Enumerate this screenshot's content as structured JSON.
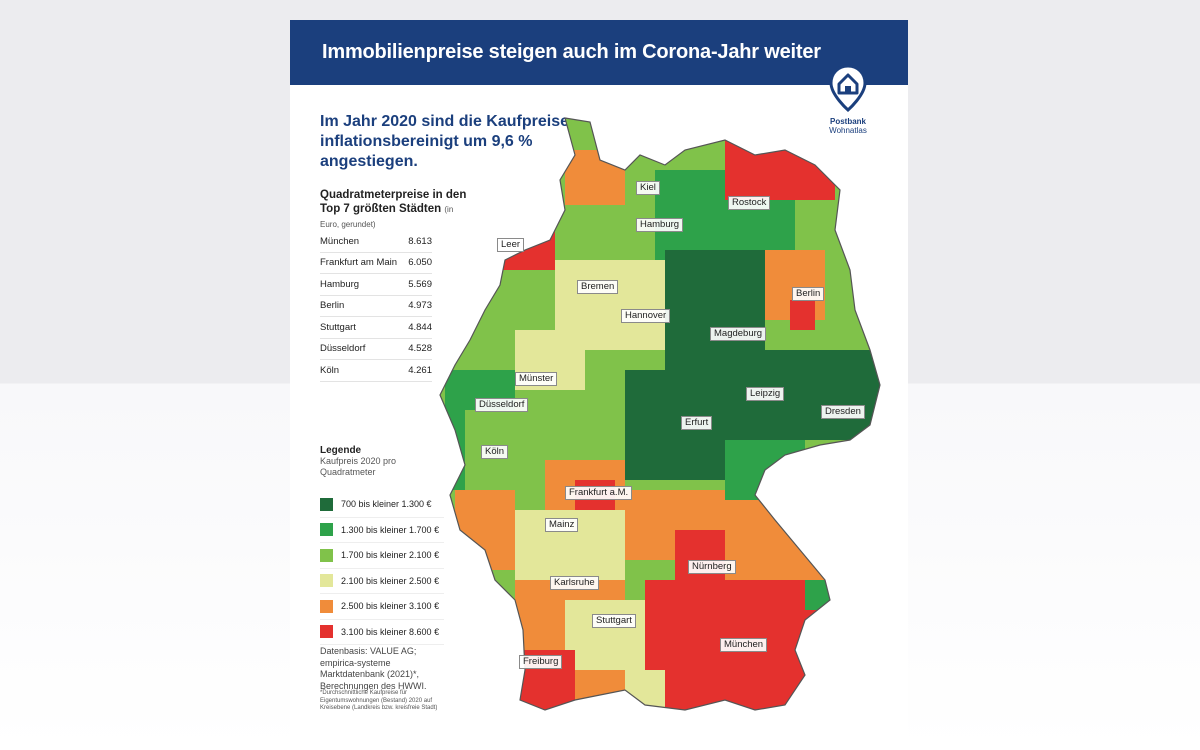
{
  "banner": {
    "title": "Immobilienpreise steigen auch im Corona-Jahr weiter"
  },
  "logo": {
    "name": "Postbank",
    "sub": "Wohnatlas",
    "icon": "house-pin-icon",
    "color": "#1b3f7d"
  },
  "headline": "Im Jahr 2020 sind die Kaufpreise inflationsbereinigt um 9,6 % angestiegen.",
  "ranking": {
    "title": "Quadratmeterpreise in den Top 7 größten Städten",
    "unit": "(in Euro, gerundet)",
    "rows": [
      {
        "city": "München",
        "value": "8.613"
      },
      {
        "city": "Frankfurt am Main",
        "value": "6.050"
      },
      {
        "city": "Hamburg",
        "value": "5.569"
      },
      {
        "city": "Berlin",
        "value": "4.973"
      },
      {
        "city": "Stuttgart",
        "value": "4.844"
      },
      {
        "city": "Düsseldorf",
        "value": "4.528"
      },
      {
        "city": "Köln",
        "value": "4.261"
      }
    ]
  },
  "legend": {
    "title": "Legende",
    "subtitle": "Kaufpreis 2020 pro Quadratmeter",
    "items": [
      {
        "label": "700 bis kleiner 1.300 €",
        "color": "#1f6b3a"
      },
      {
        "label": "1.300 bis kleiner 1.700 €",
        "color": "#2ea24a"
      },
      {
        "label": "1.700 bis kleiner 2.100 €",
        "color": "#80c24a"
      },
      {
        "label": "2.100 bis kleiner 2.500 €",
        "color": "#e3e79a"
      },
      {
        "label": "2.500 bis kleiner 3.100 €",
        "color": "#f08c3a"
      },
      {
        "label": "3.100 bis kleiner 8.600 €",
        "color": "#e4312e"
      }
    ]
  },
  "source": "Datenbasis: VALUE AG; empirica-systeme Marktdatenbank (2021)*, Berechnungen des HWWI.",
  "footnote": "*Durchschnittliche Kaufpreise für Eigentumswohnungen (Bestand) 2020 auf Kreisebene (Landkreis bzw. kreisfreie Stadt)",
  "map": {
    "cities": [
      {
        "name": "Kiel"
      },
      {
        "name": "Rostock"
      },
      {
        "name": "Hamburg"
      },
      {
        "name": "Leer"
      },
      {
        "name": "Bremen"
      },
      {
        "name": "Berlin"
      },
      {
        "name": "Hannover"
      },
      {
        "name": "Magdeburg"
      },
      {
        "name": "Münster"
      },
      {
        "name": "Düsseldorf"
      },
      {
        "name": "Leipzig"
      },
      {
        "name": "Dresden"
      },
      {
        "name": "Erfurt"
      },
      {
        "name": "Köln"
      },
      {
        "name": "Frankfurt a.M."
      },
      {
        "name": "Mainz"
      },
      {
        "name": "Nürnberg"
      },
      {
        "name": "Karlsruhe"
      },
      {
        "name": "Stuttgart"
      },
      {
        "name": "München"
      },
      {
        "name": "Freiburg"
      }
    ]
  }
}
